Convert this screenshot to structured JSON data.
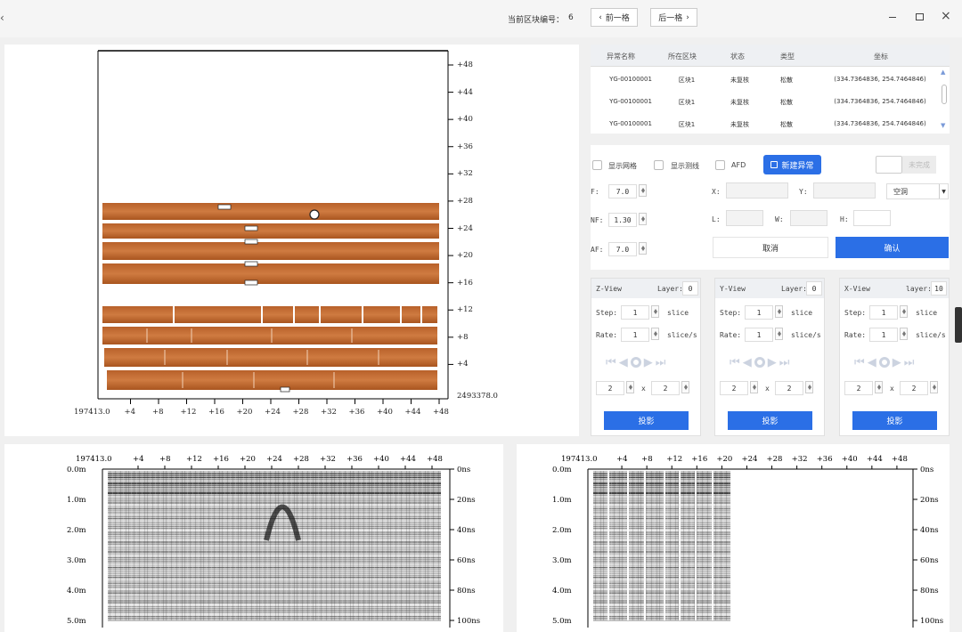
{
  "topbar": {
    "back_icon": "chevron-left-icon",
    "block_label": "当前区块编号：",
    "block_no": "6",
    "prev": "前一格",
    "next": "后一格"
  },
  "colors": {
    "accent": "#2b6fe6",
    "gpr_strip": "#c06a30"
  },
  "table": {
    "headers": [
      "异常名称",
      "所在区块",
      "状态",
      "类型",
      "坐标"
    ],
    "rows": [
      [
        "YG-00100001",
        "区块1",
        "未复核",
        "松散",
        "(334.7364836, 254.7464846)"
      ],
      [
        "YG-00100001",
        "区块1",
        "未复核",
        "松散",
        "(334.7364836, 254.7464846)"
      ],
      [
        "YG-00100001",
        "区块1",
        "未复核",
        "松散",
        "(334.7364836, 254.7464846)"
      ]
    ]
  },
  "options": {
    "grid": "显示网格",
    "lines": "显示测线",
    "afd": "AFD",
    "new_anomaly": "新建异常",
    "import": "未完成"
  },
  "params": {
    "f_label": "F:",
    "f_value": "7.0",
    "nf_label": "NF:",
    "nf_value": "1.30",
    "af_label": "AF:",
    "af_value": "7.0",
    "x_label": "X:",
    "y_label": "Y:",
    "l_label": "L:",
    "w_label": "W:",
    "h_label": "H:",
    "type_value": "空洞",
    "cancel": "取消",
    "confirm": "确认"
  },
  "views": [
    {
      "title": "Z-View",
      "layer_label": "Layer:",
      "layer": "0",
      "step_label": "Step:",
      "step": "1",
      "step_unit": "slice",
      "rate_label": "Rate:",
      "rate": "1",
      "rate_unit": "slice/s",
      "g1": "2",
      "x": "x",
      "g2": "2",
      "project": "投影"
    },
    {
      "title": "Y-View",
      "layer_label": "Layer:",
      "layer": "0",
      "step_label": "Step:",
      "step": "1",
      "step_unit": "slice",
      "rate_label": "Rate:",
      "rate": "1",
      "rate_unit": "slice/s",
      "g1": "2",
      "x": "x",
      "g2": "2",
      "project": "投影"
    },
    {
      "title": "X-View",
      "layer_label": "layer:",
      "layer": "10",
      "step_label": "Step:",
      "step": "1",
      "step_unit": "slice",
      "rate_label": "Rate:",
      "rate": "1",
      "rate_unit": "slice/s",
      "g1": "2",
      "x": "x",
      "g2": "2",
      "project": "投影"
    }
  ],
  "plan": {
    "x_origin": "197413.0",
    "x_ticks": [
      "+4",
      "+8",
      "+12",
      "+16",
      "+20",
      "+24",
      "+28",
      "+32",
      "+36",
      "+40",
      "+44",
      "+48"
    ],
    "y_origin": "2493378.0",
    "y_ticks": [
      "+48",
      "+44",
      "+40",
      "+36",
      "+32",
      "+28",
      "+24",
      "+20",
      "+16",
      "+12",
      "+8",
      "+4"
    ]
  },
  "profile": {
    "x_origin": "197413.0",
    "x_ticks": [
      "+4",
      "+8",
      "+12",
      "+16",
      "+20",
      "+24",
      "+28",
      "+32",
      "+36",
      "+40",
      "+44",
      "+48"
    ],
    "depth_ticks": [
      "0.0m",
      "1.0m",
      "2.0m",
      "3.0m",
      "4.0m",
      "5.0m"
    ],
    "time_ticks": [
      "0ns",
      "20ns",
      "40ns",
      "60ns",
      "80ns",
      "100ns"
    ]
  }
}
